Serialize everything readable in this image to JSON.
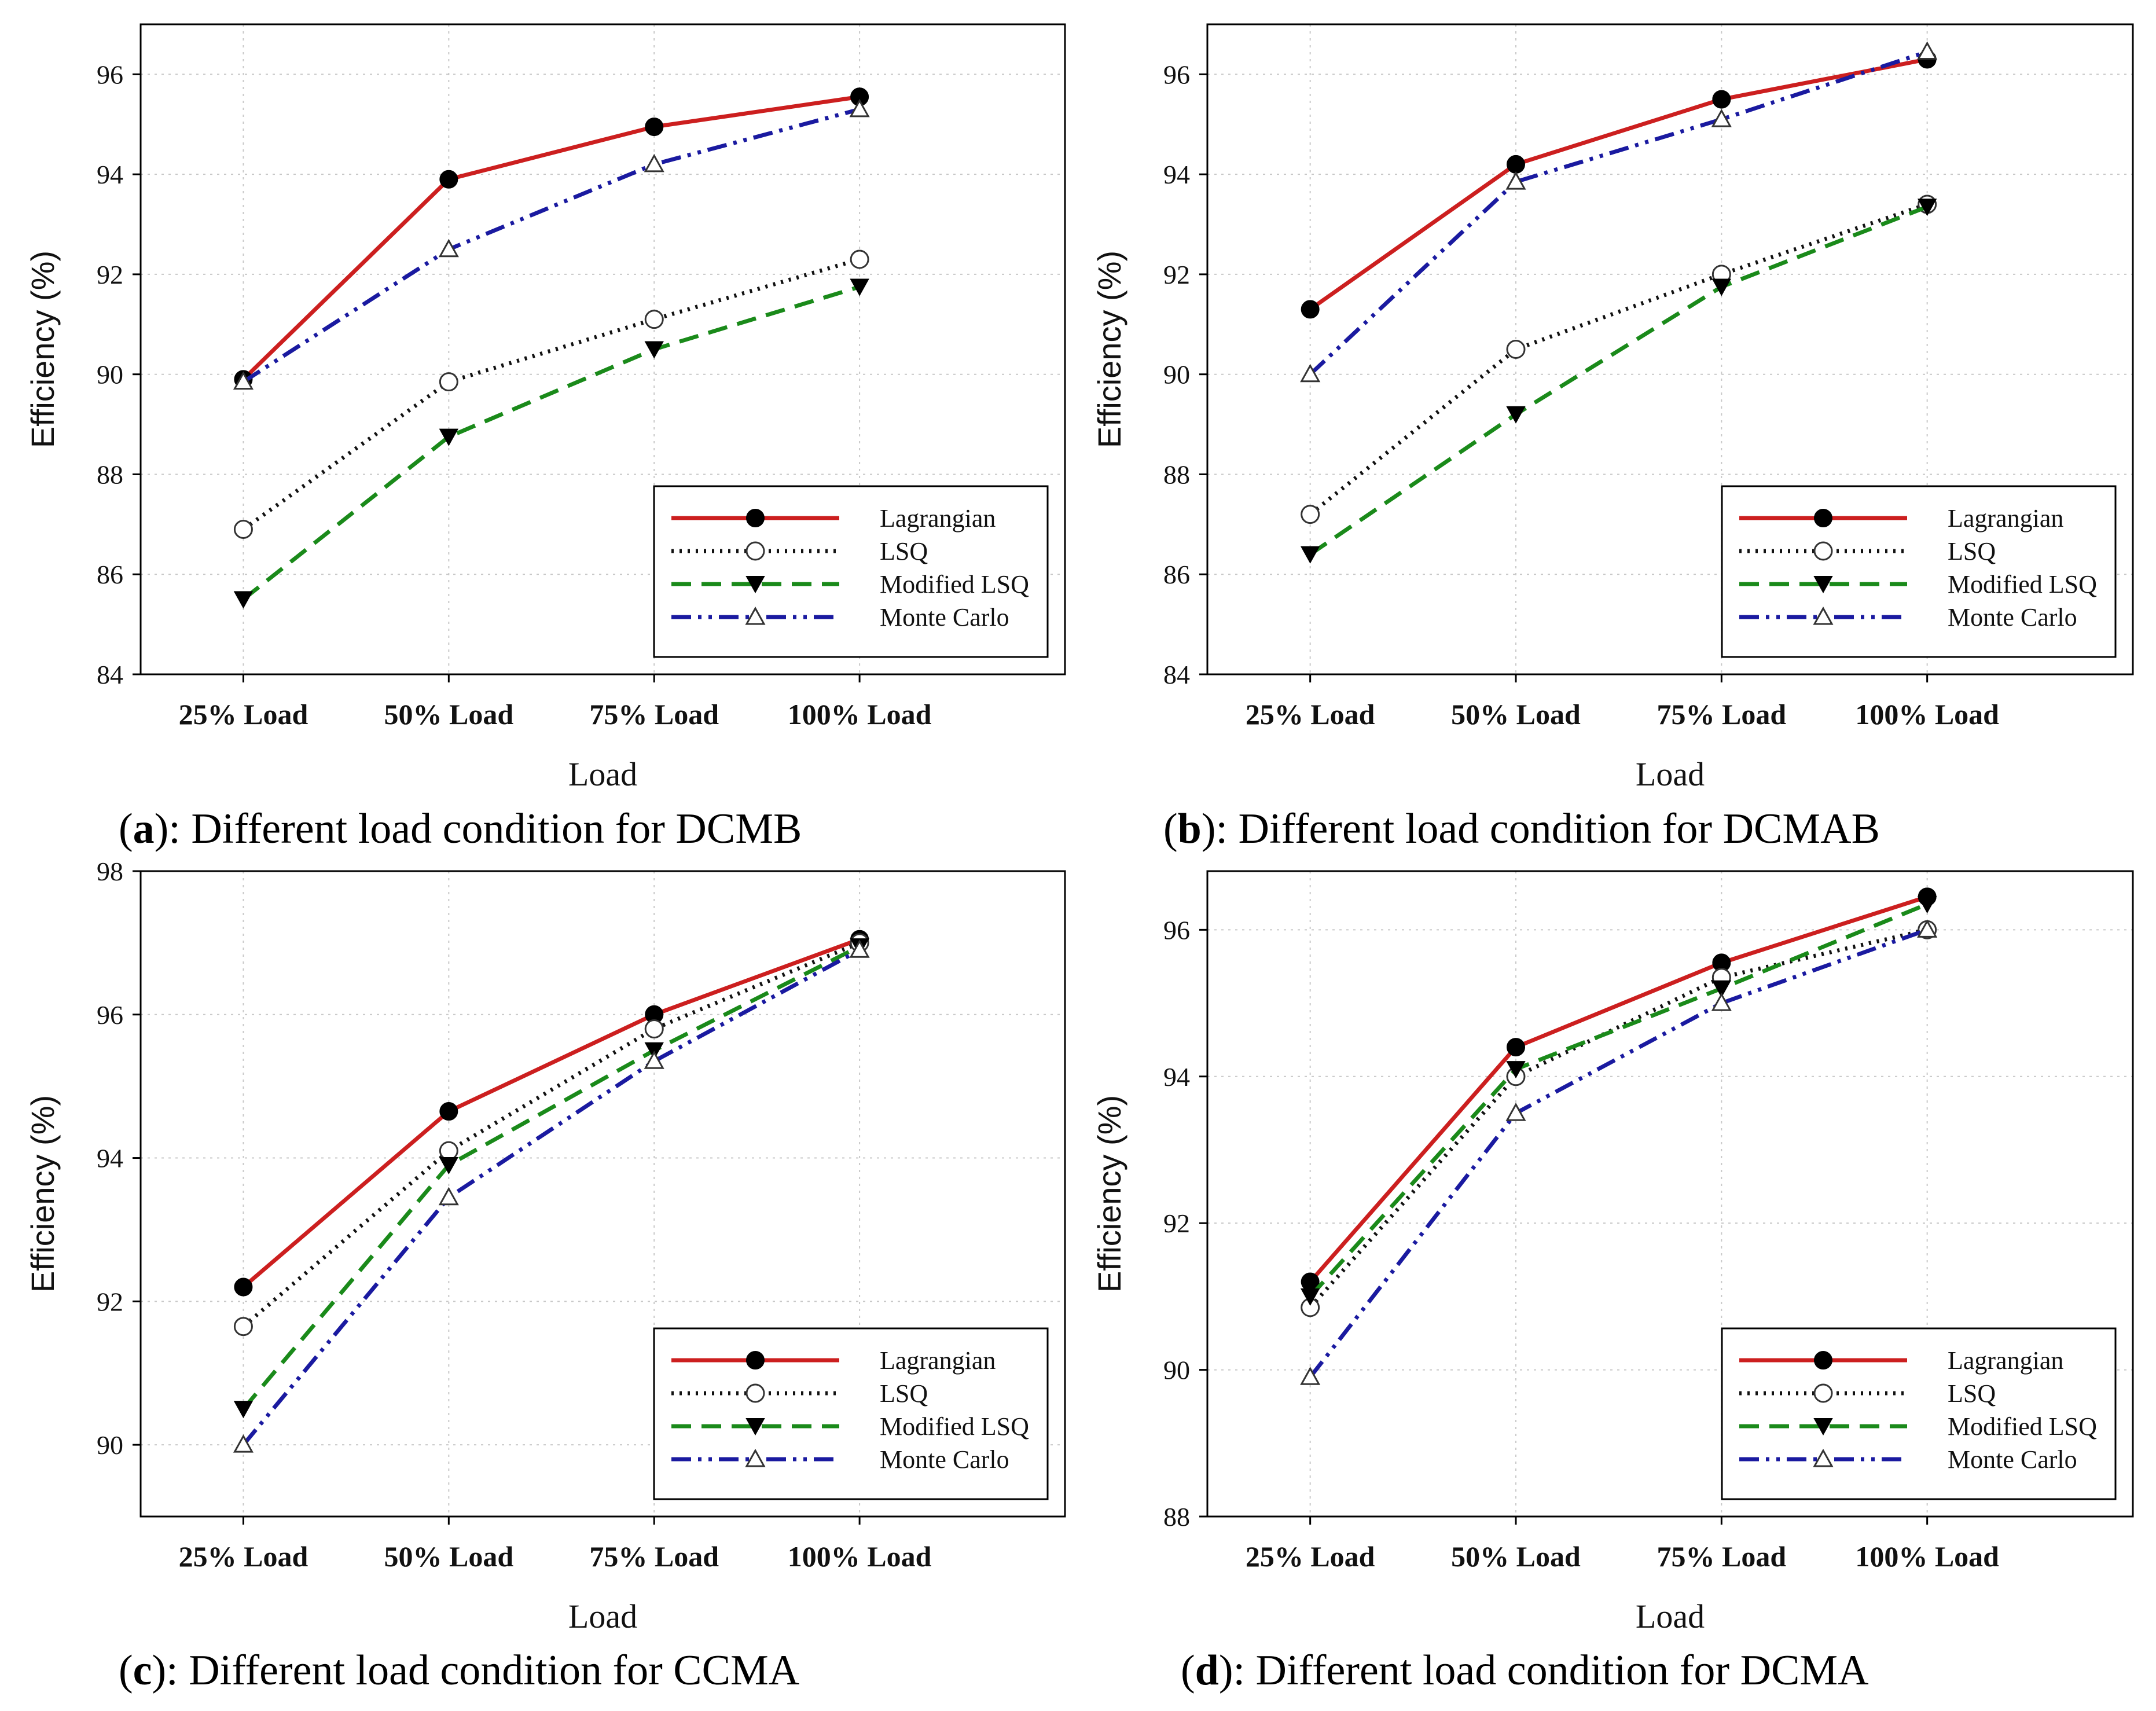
{
  "chart_data": [
    {
      "type": "line",
      "panel": "a",
      "caption": "Different load condition for DCMB",
      "xlabel": "Load",
      "ylabel": "Efficiency (%)",
      "categories": [
        "25% Load",
        "50% Load",
        "75% Load",
        "100% Load"
      ],
      "ylim": [
        84,
        97
      ],
      "yticks": [
        84,
        86,
        88,
        90,
        92,
        94,
        96
      ],
      "grid": true,
      "legend_position": "bottom-right",
      "series": [
        {
          "name": "Lagrangian",
          "color": "#cc1f1f",
          "style": "solid",
          "marker": "filled-circle",
          "values": [
            89.9,
            93.9,
            94.95,
            95.55
          ]
        },
        {
          "name": "LSQ",
          "color": "#111111",
          "style": "dotted",
          "marker": "open-circle",
          "values": [
            86.9,
            89.85,
            91.1,
            92.3
          ]
        },
        {
          "name": "Modified LSQ",
          "color": "#1a8a1a",
          "style": "dashed",
          "marker": "filled-triangle-down",
          "values": [
            85.5,
            88.75,
            90.5,
            91.75
          ]
        },
        {
          "name": "Monte Carlo",
          "color": "#1a1aa0",
          "style": "dashdotdot",
          "marker": "open-triangle-up",
          "values": [
            89.85,
            92.5,
            94.2,
            95.3
          ]
        }
      ]
    },
    {
      "type": "line",
      "panel": "b",
      "caption": "Different load condition for DCMAB",
      "xlabel": "Load",
      "ylabel": "Efficiency (%)",
      "categories": [
        "25% Load",
        "50% Load",
        "75% Load",
        "100% Load"
      ],
      "ylim": [
        84,
        97
      ],
      "yticks": [
        84,
        86,
        88,
        90,
        92,
        94,
        96
      ],
      "grid": true,
      "legend_position": "bottom-right",
      "series": [
        {
          "name": "Lagrangian",
          "color": "#cc1f1f",
          "style": "solid",
          "marker": "filled-circle",
          "values": [
            91.3,
            94.2,
            95.5,
            96.3
          ]
        },
        {
          "name": "LSQ",
          "color": "#111111",
          "style": "dotted",
          "marker": "open-circle",
          "values": [
            87.2,
            90.5,
            92.0,
            93.4
          ]
        },
        {
          "name": "Modified LSQ",
          "color": "#1a8a1a",
          "style": "dashed",
          "marker": "filled-triangle-down",
          "values": [
            86.4,
            89.2,
            91.75,
            93.35
          ]
        },
        {
          "name": "Monte Carlo",
          "color": "#1a1aa0",
          "style": "dashdotdot",
          "marker": "open-triangle-up",
          "values": [
            90.0,
            93.85,
            95.1,
            96.45
          ]
        }
      ]
    },
    {
      "type": "line",
      "panel": "c",
      "caption": "Different load condition for CCMA",
      "xlabel": "Load",
      "ylabel": "Efficiency (%)",
      "categories": [
        "25% Load",
        "50% Load",
        "75% Load",
        "100% Load"
      ],
      "ylim": [
        89,
        98
      ],
      "yticks": [
        90,
        92,
        94,
        96,
        98
      ],
      "grid": true,
      "legend_position": "bottom-right",
      "series": [
        {
          "name": "Lagrangian",
          "color": "#cc1f1f",
          "style": "solid",
          "marker": "filled-circle",
          "values": [
            92.2,
            94.65,
            96.0,
            97.05
          ]
        },
        {
          "name": "LSQ",
          "color": "#111111",
          "style": "dotted",
          "marker": "open-circle",
          "values": [
            91.65,
            94.1,
            95.8,
            97.0
          ]
        },
        {
          "name": "Modified LSQ",
          "color": "#1a8a1a",
          "style": "dashed",
          "marker": "filled-triangle-down",
          "values": [
            90.5,
            93.9,
            95.5,
            96.95
          ]
        },
        {
          "name": "Monte Carlo",
          "color": "#1a1aa0",
          "style": "dashdotdot",
          "marker": "open-triangle-up",
          "values": [
            90.0,
            93.45,
            95.35,
            96.9
          ]
        }
      ]
    },
    {
      "type": "line",
      "panel": "d",
      "caption": "Different load condition for DCMA",
      "xlabel": "Load",
      "ylabel": "Efficiency (%)",
      "categories": [
        "25% Load",
        "50% Load",
        "75% Load",
        "100% Load"
      ],
      "ylim": [
        88,
        96.8
      ],
      "yticks": [
        88,
        90,
        92,
        94,
        96
      ],
      "grid": true,
      "legend_position": "bottom-right",
      "series": [
        {
          "name": "Lagrangian",
          "color": "#cc1f1f",
          "style": "solid",
          "marker": "filled-circle",
          "values": [
            91.2,
            94.4,
            95.55,
            96.45
          ]
        },
        {
          "name": "LSQ",
          "color": "#111111",
          "style": "dotted",
          "marker": "open-circle",
          "values": [
            90.85,
            94.0,
            95.35,
            96.0
          ]
        },
        {
          "name": "Modified LSQ",
          "color": "#1a8a1a",
          "style": "dashed",
          "marker": "filled-triangle-down",
          "values": [
            91.0,
            94.1,
            95.2,
            96.35
          ]
        },
        {
          "name": "Monte Carlo",
          "color": "#1a1aa0",
          "style": "dashdotdot",
          "marker": "open-triangle-up",
          "values": [
            89.9,
            93.5,
            95.0,
            96.0
          ]
        }
      ]
    }
  ]
}
